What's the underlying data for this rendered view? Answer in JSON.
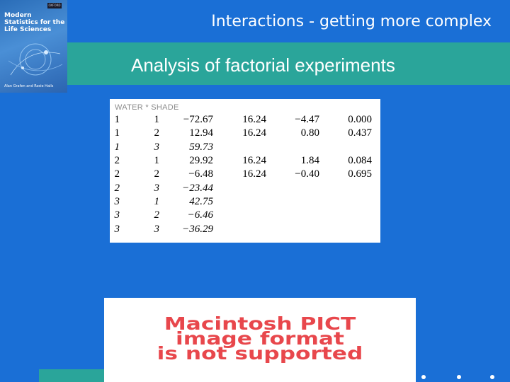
{
  "book": {
    "badge": "OXFORD",
    "title_lines": [
      "Modern",
      "Statistics for the",
      "Life Sciences"
    ],
    "authors": "Alan Grafen and Rosie Hails"
  },
  "header": {
    "title": "Interactions - getting more complex",
    "subtitle": "Analysis of factorial experiments"
  },
  "table": {
    "header": "WATER * SHADE",
    "rows": [
      {
        "water": "1",
        "shade": "1",
        "estimate": "−72.67",
        "se": "16.24",
        "t": "−4.47",
        "p": "0.000"
      },
      {
        "water": "1",
        "shade": "2",
        "estimate": "12.94",
        "se": "16.24",
        "t": "0.80",
        "p": "0.437"
      },
      {
        "water": "1",
        "shade": "3",
        "estimate": "59.73",
        "se": "",
        "t": "",
        "p": "",
        "italic": true
      },
      {
        "water": "2",
        "shade": "1",
        "estimate": "29.92",
        "se": "16.24",
        "t": "1.84",
        "p": "0.084"
      },
      {
        "water": "2",
        "shade": "2",
        "estimate": "−6.48",
        "se": "16.24",
        "t": "−0.40",
        "p": "0.695"
      },
      {
        "water": "2",
        "shade": "3",
        "estimate": "−23.44",
        "se": "",
        "t": "",
        "p": "",
        "italic": true
      },
      {
        "water": "3",
        "shade": "1",
        "estimate": "42.75",
        "se": "",
        "t": "",
        "p": "",
        "italic": true
      },
      {
        "water": "3",
        "shade": "2",
        "estimate": "−6.46",
        "se": "",
        "t": "",
        "p": "",
        "italic": true
      },
      {
        "water": "3",
        "shade": "3",
        "estimate": "−36.29",
        "se": "",
        "t": "",
        "p": "",
        "italic": true
      }
    ]
  },
  "placeholder": {
    "lines": [
      "Macintosh PICT",
      "image format",
      "is not supported"
    ]
  },
  "colors": {
    "background": "#1a6fd6",
    "band": "#2aa59a",
    "placeholder_text": "#e8474c"
  }
}
